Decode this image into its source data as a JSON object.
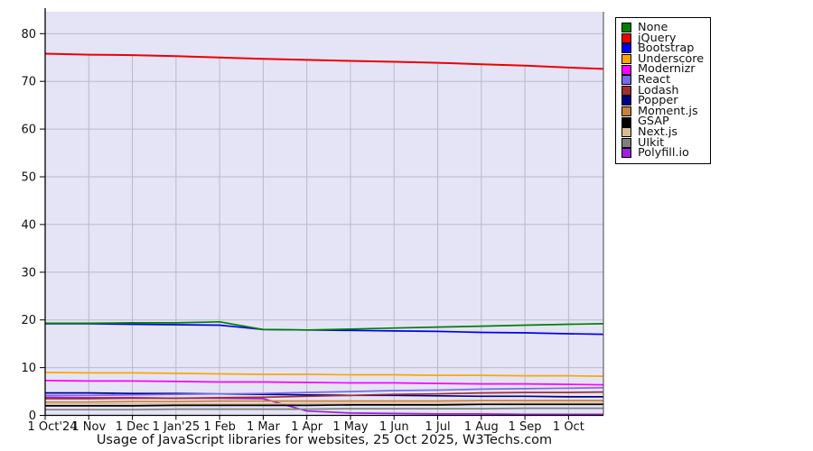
{
  "chart_data": {
    "type": "line",
    "title": "Usage of JavaScript libraries for websites, 25 Oct 2025, W3Techs.com",
    "xlabel": "",
    "ylabel": "",
    "ylim": [
      0,
      84.5
    ],
    "y_ticks": [
      0,
      10,
      20,
      30,
      40,
      50,
      60,
      70,
      80
    ],
    "x_tick_labels": [
      "1 Oct'24",
      "1 Nov",
      "1 Dec",
      "1 Jan'25",
      "1 Feb",
      "1 Mar",
      "1 Apr",
      "1 May",
      "1 Jun",
      "1 Jul",
      "1 Aug",
      "1 Sep",
      "1 Oct"
    ],
    "x_months": [
      0,
      1,
      2,
      3,
      4,
      5,
      6,
      7,
      8,
      9,
      10,
      11,
      12,
      12.8
    ],
    "grid": "horizontal gridlines full width; vertical month gridlines drawn only up to the top (jQuery) line",
    "legend_position": "outside-top-right",
    "plot_bg": "#e4e4f6",
    "grid_color": "#b9b9c9",
    "axis_color": "#000000",
    "series": [
      {
        "name": "None",
        "color": "#008000",
        "values": [
          19.3,
          19.3,
          19.4,
          19.4,
          19.6,
          18.0,
          17.9,
          18.1,
          18.3,
          18.5,
          18.7,
          18.9,
          19.1,
          19.2
        ]
      },
      {
        "name": "jQuery",
        "color": "#ee0000",
        "values": [
          75.8,
          75.6,
          75.5,
          75.3,
          75.0,
          74.7,
          74.5,
          74.3,
          74.1,
          73.9,
          73.6,
          73.3,
          72.9,
          72.6
        ]
      },
      {
        "name": "Bootstrap",
        "color": "#0000ee",
        "values": [
          19.2,
          19.2,
          19.1,
          19.0,
          18.9,
          18.0,
          17.9,
          17.8,
          17.7,
          17.6,
          17.4,
          17.3,
          17.1,
          17.0
        ]
      },
      {
        "name": "Underscore",
        "color": "#ffa500",
        "values": [
          9.0,
          8.9,
          8.9,
          8.8,
          8.7,
          8.6,
          8.6,
          8.5,
          8.5,
          8.4,
          8.4,
          8.3,
          8.3,
          8.2
        ]
      },
      {
        "name": "Modernizr",
        "color": "#ff00ff",
        "values": [
          7.3,
          7.2,
          7.2,
          7.1,
          7.0,
          7.0,
          6.9,
          6.8,
          6.8,
          6.7,
          6.6,
          6.6,
          6.5,
          6.4
        ]
      },
      {
        "name": "React",
        "color": "#7b68ee",
        "values": [
          4.2,
          4.2,
          4.3,
          4.4,
          4.5,
          4.6,
          4.8,
          5.0,
          5.2,
          5.3,
          5.5,
          5.6,
          5.7,
          5.8
        ]
      },
      {
        "name": "Lodash",
        "color": "#a03030",
        "values": [
          3.5,
          3.5,
          3.6,
          3.6,
          3.7,
          3.8,
          4.0,
          4.2,
          4.4,
          4.5,
          4.7,
          4.8,
          4.8,
          4.9
        ]
      },
      {
        "name": "Popper",
        "color": "#00008b",
        "values": [
          4.7,
          4.7,
          4.6,
          4.6,
          4.5,
          4.4,
          4.3,
          4.2,
          4.2,
          4.1,
          4.0,
          4.0,
          3.9,
          3.9
        ]
      },
      {
        "name": "Moment.js",
        "color": "#c8813c",
        "values": [
          2.8,
          2.8,
          2.9,
          2.9,
          3.0,
          3.0,
          3.0,
          3.0,
          3.0,
          3.0,
          3.1,
          3.1,
          3.1,
          3.1
        ]
      },
      {
        "name": "GSAP",
        "color": "#000000",
        "values": [
          2.0,
          2.0,
          2.0,
          2.1,
          2.1,
          2.1,
          2.1,
          2.2,
          2.2,
          2.2,
          2.3,
          2.3,
          2.3,
          2.3
        ]
      },
      {
        "name": "Next.js",
        "color": "#d8bb92",
        "values": [
          2.4,
          2.4,
          2.4,
          2.4,
          2.4,
          2.4,
          2.5,
          2.5,
          2.5,
          2.5,
          2.5,
          2.6,
          2.6,
          2.6
        ]
      },
      {
        "name": "UIkit",
        "color": "#7f7f7f",
        "values": [
          1.2,
          1.2,
          1.2,
          1.3,
          1.3,
          1.3,
          1.3,
          1.4,
          1.4,
          1.4,
          1.4,
          1.5,
          1.5,
          1.5
        ]
      },
      {
        "name": "Polyfill.io",
        "color": "#a11fe0",
        "values": [
          3.8,
          3.7,
          3.7,
          3.6,
          3.6,
          3.5,
          0.9,
          0.5,
          0.4,
          0.3,
          0.3,
          0.2,
          0.2,
          0.2
        ]
      }
    ]
  }
}
